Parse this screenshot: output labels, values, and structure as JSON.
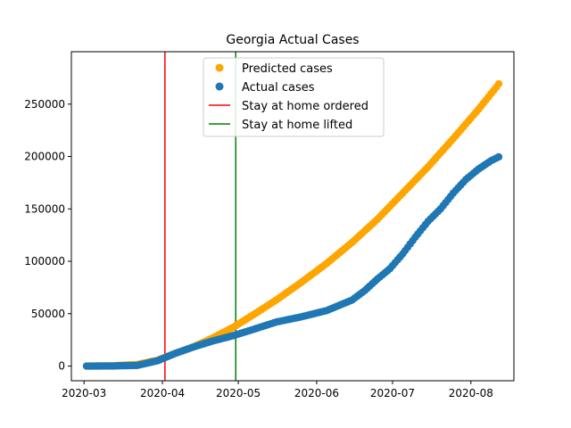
{
  "chart_data": {
    "type": "scatter",
    "title": "Georgia Actual Cases",
    "xlabel": "",
    "ylabel": "",
    "x_start": "2020-03-02",
    "x_end": "2020-08-12",
    "xlim": [
      "2020-02-25",
      "2020-08-18"
    ],
    "ylim": [
      -14000,
      300000
    ],
    "x_ticks": [
      "2020-03-01",
      "2020-04-01",
      "2020-05-01",
      "2020-06-01",
      "2020-07-01",
      "2020-08-01"
    ],
    "x_tick_labels": [
      "2020-03",
      "2020-04",
      "2020-05",
      "2020-06",
      "2020-07",
      "2020-08"
    ],
    "y_ticks": [
      0,
      50000,
      100000,
      150000,
      200000,
      250000
    ],
    "y_tick_labels": [
      "0",
      "50000",
      "100000",
      "150000",
      "200000",
      "250000"
    ],
    "grid": false,
    "legend_position": "top-center",
    "series": [
      {
        "name": "Predicted cases",
        "color": "#ffa500",
        "values": [
          [
            0,
            0
          ],
          [
            10,
            200
          ],
          [
            20,
            1500
          ],
          [
            28,
            5500
          ],
          [
            35,
            12000
          ],
          [
            42,
            18000
          ],
          [
            50,
            27000
          ],
          [
            58,
            37000
          ],
          [
            66,
            49000
          ],
          [
            75,
            63000
          ],
          [
            85,
            80000
          ],
          [
            95,
            98000
          ],
          [
            105,
            118000
          ],
          [
            115,
            140000
          ],
          [
            125,
            165000
          ],
          [
            135,
            190000
          ],
          [
            145,
            217000
          ],
          [
            155,
            245000
          ],
          [
            162,
            266000
          ],
          [
            168,
            286000
          ]
        ]
      },
      {
        "name": "Actual cases",
        "color": "#1f77b4",
        "values": [
          [
            0,
            0
          ],
          [
            10,
            100
          ],
          [
            20,
            600
          ],
          [
            28,
            5000
          ],
          [
            35,
            12000
          ],
          [
            42,
            18000
          ],
          [
            50,
            24000
          ],
          [
            58,
            29000
          ],
          [
            66,
            35000
          ],
          [
            75,
            42000
          ],
          [
            85,
            47000
          ],
          [
            95,
            53000
          ],
          [
            105,
            63000
          ],
          [
            110,
            72000
          ],
          [
            115,
            83000
          ],
          [
            120,
            93000
          ],
          [
            125,
            107000
          ],
          [
            130,
            123000
          ],
          [
            135,
            138000
          ],
          [
            140,
            150000
          ],
          [
            145,
            165000
          ],
          [
            150,
            178000
          ],
          [
            155,
            188000
          ],
          [
            160,
            196000
          ],
          [
            165,
            202000
          ],
          [
            168,
            206000
          ]
        ]
      }
    ],
    "vlines": [
      {
        "name": "Stay at home ordered",
        "date": "2020-04-02",
        "color": "#ff0000"
      },
      {
        "name": "Stay at home lifted",
        "date": "2020-04-30",
        "color": "#008000"
      }
    ]
  }
}
